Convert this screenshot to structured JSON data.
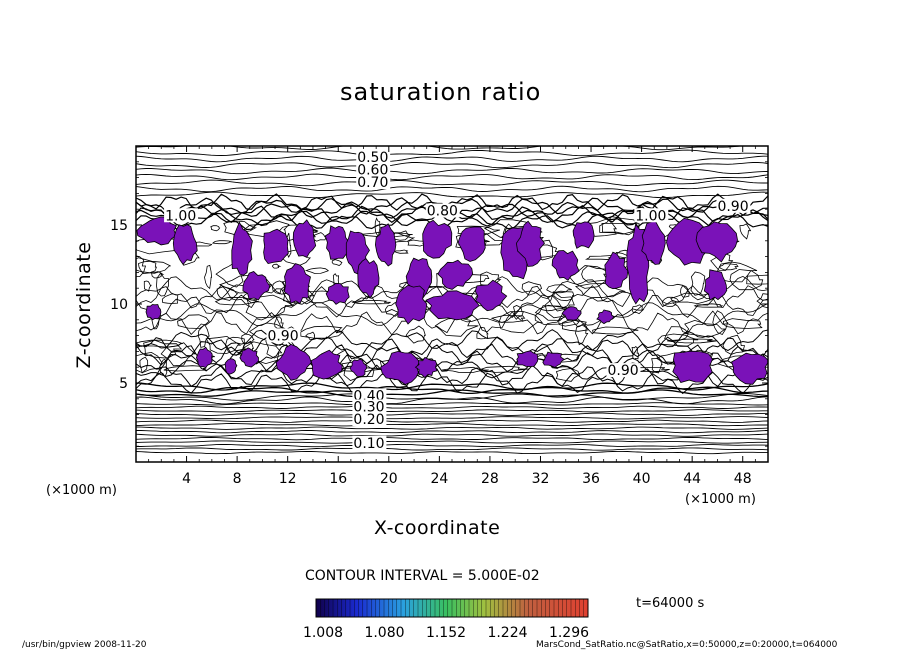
{
  "chart_data": {
    "type": "contour",
    "title": "saturation ratio",
    "xlabel": "X-coordinate",
    "ylabel": "Z-coordinate",
    "x_unit": "(×1000 m)",
    "y_unit": "(×1000 m)",
    "xlim": [
      0,
      50
    ],
    "ylim": [
      0,
      20
    ],
    "xticks": [
      4,
      8,
      12,
      16,
      20,
      24,
      28,
      32,
      36,
      40,
      44,
      48
    ],
    "yticks": [
      5,
      10,
      15
    ],
    "contour_interval_label": "CONTOUR INTERVAL = 5.000E-02",
    "contour_labels": [
      {
        "text": "0.50",
        "x": 17.5,
        "y": 19.0
      },
      {
        "text": "0.60",
        "x": 17.5,
        "y": 18.2
      },
      {
        "text": "0.70",
        "x": 17.5,
        "y": 17.4
      },
      {
        "text": "1.00",
        "x": 2.3,
        "y": 15.3
      },
      {
        "text": "0.80",
        "x": 23.0,
        "y": 15.6
      },
      {
        "text": "1.00",
        "x": 39.5,
        "y": 15.3
      },
      {
        "text": "0.90",
        "x": 46.0,
        "y": 15.9
      },
      {
        "text": "0.90",
        "x": 10.4,
        "y": 7.7
      },
      {
        "text": "0.90",
        "x": 37.3,
        "y": 5.5
      },
      {
        "text": "0.40",
        "x": 17.2,
        "y": 3.9
      },
      {
        "text": "0.30",
        "x": 17.2,
        "y": 3.2
      },
      {
        "text": "0.20",
        "x": 17.2,
        "y": 2.4
      },
      {
        "text": "0.10",
        "x": 17.2,
        "y": 0.9
      }
    ],
    "shading": {
      "threshold": 1.008,
      "color": "#7a12b8",
      "colorbar_ticks": [
        "1.008",
        "1.080",
        "1.152",
        "1.224",
        "1.296"
      ]
    },
    "time_label": "t=64000 s"
  },
  "footer": {
    "left": "/usr/bin/gpview   2008-11-20",
    "right": "MarsCond_SatRatio.nc@SatRatio,x=0:50000,z=0:20000,t=064000"
  },
  "colors": {
    "ink": "#000000",
    "shade": "#7a12b8",
    "background": "#ffffff"
  }
}
